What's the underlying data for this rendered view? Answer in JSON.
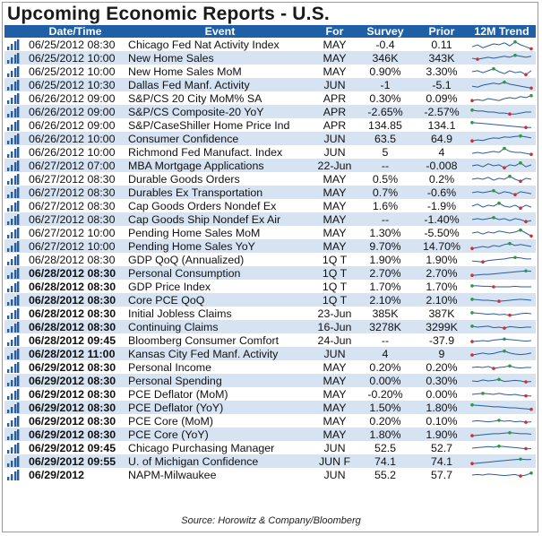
{
  "title": "Upcoming Economic Reports - U.S.",
  "columns": {
    "datetime": "Date/Time",
    "event": "Event",
    "for": "For",
    "survey": "Survey",
    "prior": "Prior",
    "trend": "12M Trend"
  },
  "source": "Source: Horowitz & Company/Bloomberg",
  "colors": {
    "header": "#1f5fa6",
    "alt_row": "#d6e3f3",
    "spark_line": "#2a5d9a",
    "spark_high": "#2e9a3a",
    "spark_low": "#d23030"
  },
  "chart_data": {
    "type": "table",
    "rows": [
      {
        "datetime": "06/25/2012 08:30",
        "bold": false,
        "event": "Chicago Fed Nat Activity Index",
        "for": "MAY",
        "survey": "-0.4",
        "prior": "0.11",
        "trend": [
          0.3,
          0.5,
          0.2,
          0.4,
          0.6,
          0.5,
          0.7,
          0.4,
          0.8,
          0.5,
          0.3,
          0.1
        ]
      },
      {
        "datetime": "06/25/2012 10:00",
        "bold": false,
        "event": "New Home Sales",
        "for": "MAY",
        "survey": "346K",
        "prior": "343K",
        "trend": [
          0.5,
          0.4,
          0.5,
          0.6,
          0.5,
          0.6,
          0.7,
          0.6,
          0.8,
          0.7,
          0.6,
          0.7
        ]
      },
      {
        "datetime": "06/25/2012 10:00",
        "bold": false,
        "event": "New Home Sales MoM",
        "for": "MAY",
        "survey": "0.90%",
        "prior": "3.30%",
        "trend": [
          0.5,
          0.6,
          0.4,
          0.6,
          0.8,
          0.5,
          0.3,
          0.6,
          0.4,
          0.5,
          0.2,
          0.6
        ]
      },
      {
        "datetime": "06/25/2012 10:30",
        "bold": false,
        "event": "Dallas Fed Manf. Activity",
        "for": "JUN",
        "survey": "-1",
        "prior": "-5.1",
        "trend": [
          0.4,
          0.3,
          0.5,
          0.6,
          0.7,
          0.6,
          0.8,
          0.6,
          0.5,
          0.4,
          0.3,
          0.2
        ]
      },
      {
        "datetime": "06/26/2012 09:00",
        "bold": false,
        "event": "S&P/CS 20 City MoM% SA",
        "for": "APR",
        "survey": "0.30%",
        "prior": "0.09%",
        "trend": [
          0.3,
          0.4,
          0.3,
          0.5,
          0.4,
          0.3,
          0.5,
          0.6,
          0.5,
          0.7,
          0.6,
          0.8
        ]
      },
      {
        "datetime": "06/26/2012 09:00",
        "bold": false,
        "event": "S&P/CS Composite-20 YoY",
        "for": "APR",
        "survey": "-2.65%",
        "prior": "-2.57%",
        "trend": [
          0.7,
          0.6,
          0.6,
          0.5,
          0.5,
          0.4,
          0.4,
          0.3,
          0.3,
          0.4,
          0.5,
          0.5
        ]
      },
      {
        "datetime": "06/26/2012 09:00",
        "bold": false,
        "event": "S&P/CaseShiller Home Price Ind",
        "for": "APR",
        "survey": "134.85",
        "prior": "134.1",
        "trend": [
          0.8,
          0.75,
          0.7,
          0.65,
          0.6,
          0.55,
          0.5,
          0.45,
          0.4,
          0.35,
          0.3,
          0.3
        ]
      },
      {
        "datetime": "06/26/2012 10:00",
        "bold": false,
        "event": "Consumer Confidence",
        "for": "JUN",
        "survey": "63.5",
        "prior": "64.9",
        "trend": [
          0.3,
          0.4,
          0.35,
          0.5,
          0.6,
          0.55,
          0.7,
          0.65,
          0.75,
          0.8,
          0.7,
          0.6
        ]
      },
      {
        "datetime": "06/26/2012 10:00",
        "bold": false,
        "event": "Richmond Fed Manufact. Index",
        "for": "JUN",
        "survey": "5",
        "prior": "4",
        "trend": [
          0.4,
          0.5,
          0.4,
          0.5,
          0.6,
          0.5,
          0.9,
          0.6,
          0.5,
          0.5,
          0.4,
          0.3
        ]
      },
      {
        "datetime": "06/27/2012 07:00",
        "bold": false,
        "event": "MBA Mortgage Applications",
        "for": "22-Jun",
        "survey": "--",
        "prior": "-0.008",
        "trend": [
          0.5,
          0.6,
          0.4,
          0.7,
          0.5,
          0.6,
          0.3,
          0.6,
          0.5,
          0.8,
          0.4,
          0.6
        ]
      },
      {
        "datetime": "06/27/2012 08:30",
        "bold": false,
        "event": "Durable Goods Orders",
        "for": "MAY",
        "survey": "0.5%",
        "prior": "0.2%",
        "trend": [
          0.5,
          0.6,
          0.5,
          0.7,
          0.4,
          0.6,
          0.5,
          0.8,
          0.5,
          0.3,
          0.6,
          0.5
        ]
      },
      {
        "datetime": "06/27/2012 08:30",
        "bold": false,
        "event": "Durables Ex Transportation",
        "for": "MAY",
        "survey": "0.7%",
        "prior": "-0.6%",
        "trend": [
          0.5,
          0.6,
          0.5,
          0.6,
          0.7,
          0.4,
          0.6,
          0.5,
          0.3,
          0.6,
          0.5,
          0.4
        ]
      },
      {
        "datetime": "06/27/2012 08:30",
        "bold": false,
        "event": "Cap Goods Orders Nondef Ex",
        "for": "MAY",
        "survey": "1.6%",
        "prior": "-1.9%",
        "trend": [
          0.5,
          0.7,
          0.4,
          0.6,
          0.5,
          0.8,
          0.5,
          0.4,
          0.6,
          0.3,
          0.6,
          0.4
        ]
      },
      {
        "datetime": "06/27/2012 08:30",
        "bold": false,
        "event": "Cap Goods Ship Nondef Ex Air",
        "for": "MAY",
        "survey": "--",
        "prior": "-1.40%",
        "trend": [
          0.5,
          0.6,
          0.5,
          0.6,
          0.7,
          0.5,
          0.6,
          0.4,
          0.6,
          0.5,
          0.3,
          0.4
        ]
      },
      {
        "datetime": "06/27/2012 10:00",
        "bold": false,
        "event": "Pending Home Sales MoM",
        "for": "MAY",
        "survey": "1.30%",
        "prior": "-5.50%",
        "trend": [
          0.5,
          0.6,
          0.4,
          0.6,
          0.5,
          0.7,
          0.6,
          0.5,
          0.6,
          0.8,
          0.5,
          0.2
        ]
      },
      {
        "datetime": "06/27/2012 10:00",
        "bold": false,
        "event": "Pending Home Sales YoY",
        "for": "MAY",
        "survey": "9.70%",
        "prior": "14.70%",
        "trend": [
          0.3,
          0.4,
          0.5,
          0.4,
          0.6,
          0.5,
          0.7,
          0.8,
          0.6,
          0.7,
          0.6,
          0.5
        ]
      },
      {
        "datetime": "06/28/2012 08:30",
        "bold": false,
        "event": "GDP QoQ (Annualized)",
        "for": "1Q T",
        "survey": "1.90%",
        "prior": "1.90%",
        "trend": [
          0.4,
          0.35,
          0.3,
          0.45,
          0.5,
          0.55,
          0.6,
          0.7,
          0.75,
          0.7,
          0.6,
          0.6
        ]
      },
      {
        "datetime": "06/28/2012 08:30",
        "bold": true,
        "event": "Personal Consumption",
        "for": "1Q T",
        "survey": "2.70%",
        "prior": "2.70%",
        "trend": [
          0.3,
          0.35,
          0.4,
          0.4,
          0.45,
          0.5,
          0.55,
          0.6,
          0.65,
          0.7,
          0.75,
          0.7
        ]
      },
      {
        "datetime": "06/28/2012 08:30",
        "bold": true,
        "event": "GDP Price Index",
        "for": "1Q T",
        "survey": "1.70%",
        "prior": "1.70%",
        "trend": [
          0.6,
          0.6,
          0.55,
          0.55,
          0.5,
          0.5,
          0.5,
          0.5,
          0.55,
          0.5,
          0.5,
          0.5
        ]
      },
      {
        "datetime": "06/28/2012 08:30",
        "bold": true,
        "event": "Core PCE QoQ",
        "for": "1Q T",
        "survey": "2.10%",
        "prior": "2.10%",
        "trend": [
          0.6,
          0.55,
          0.5,
          0.5,
          0.45,
          0.4,
          0.45,
          0.5,
          0.55,
          0.6,
          0.55,
          0.5
        ]
      },
      {
        "datetime": "06/28/2012 08:30",
        "bold": true,
        "event": "Initial Jobless Claims",
        "for": "23-Jun",
        "survey": "385K",
        "prior": "387K",
        "trend": [
          0.6,
          0.55,
          0.5,
          0.45,
          0.5,
          0.4,
          0.45,
          0.35,
          0.4,
          0.5,
          0.55,
          0.5
        ]
      },
      {
        "datetime": "06/28/2012 08:30",
        "bold": true,
        "event": "Continuing Claims",
        "for": "16-Jun",
        "survey": "3278K",
        "prior": "3299K",
        "trend": [
          0.6,
          0.5,
          0.55,
          0.6,
          0.45,
          0.5,
          0.4,
          0.55,
          0.5,
          0.45,
          0.5,
          0.5
        ]
      },
      {
        "datetime": "06/28/2012 09:45",
        "bold": true,
        "event": "Bloomberg Consumer Comfort",
        "for": "24-Jun",
        "survey": "--",
        "prior": "-37.9",
        "trend": [
          0.4,
          0.45,
          0.5,
          0.45,
          0.55,
          0.6,
          0.65,
          0.6,
          0.55,
          0.5,
          0.45,
          0.5
        ]
      },
      {
        "datetime": "06/28/2012 11:00",
        "bold": true,
        "event": "Kansas City Fed Manf. Activity",
        "for": "JUN",
        "survey": "4",
        "prior": "9",
        "trend": [
          0.4,
          0.5,
          0.6,
          0.5,
          0.55,
          0.7,
          0.8,
          0.6,
          0.5,
          0.45,
          0.5,
          0.6
        ]
      },
      {
        "datetime": "06/29/2012 08:30",
        "bold": true,
        "event": "Personal Income",
        "for": "MAY",
        "survey": "0.20%",
        "prior": "0.20%",
        "trend": [
          0.5,
          0.55,
          0.5,
          0.6,
          0.4,
          0.5,
          0.55,
          0.65,
          0.5,
          0.45,
          0.5,
          0.5
        ]
      },
      {
        "datetime": "06/29/2012 08:30",
        "bold": true,
        "event": "Personal Spending",
        "for": "MAY",
        "survey": "0.00%",
        "prior": "0.30%",
        "trend": [
          0.5,
          0.45,
          0.6,
          0.5,
          0.55,
          0.65,
          0.45,
          0.5,
          0.55,
          0.5,
          0.4,
          0.45
        ]
      },
      {
        "datetime": "06/29/2012 08:30",
        "bold": true,
        "event": "PCE Deflator (MoM)",
        "for": "MAY",
        "survey": "-0.20%",
        "prior": "0.00%",
        "trend": [
          0.5,
          0.55,
          0.6,
          0.55,
          0.5,
          0.6,
          0.5,
          0.45,
          0.5,
          0.4,
          0.35,
          0.35
        ]
      },
      {
        "datetime": "06/29/2012 08:30",
        "bold": true,
        "event": "PCE Deflator (YoY)",
        "for": "MAY",
        "survey": "1.50%",
        "prior": "1.80%",
        "trend": [
          0.8,
          0.75,
          0.7,
          0.65,
          0.6,
          0.6,
          0.55,
          0.5,
          0.5,
          0.45,
          0.4,
          0.35
        ]
      },
      {
        "datetime": "06/29/2012 08:30",
        "bold": true,
        "event": "PCE Core (MoM)",
        "for": "MAY",
        "survey": "0.20%",
        "prior": "0.10%",
        "trend": [
          0.5,
          0.55,
          0.5,
          0.45,
          0.5,
          0.6,
          0.5,
          0.55,
          0.45,
          0.5,
          0.4,
          0.45
        ]
      },
      {
        "datetime": "06/29/2012 08:30",
        "bold": true,
        "event": "PCE Core (YoY)",
        "for": "MAY",
        "survey": "1.80%",
        "prior": "1.90%",
        "trend": [
          0.4,
          0.45,
          0.5,
          0.55,
          0.6,
          0.6,
          0.65,
          0.7,
          0.65,
          0.6,
          0.6,
          0.55
        ]
      },
      {
        "datetime": "06/29/2012 09:45",
        "bold": true,
        "event": "Chicago Purchasing Manager",
        "for": "JUN",
        "survey": "52.5",
        "prior": "52.7",
        "trend": [
          0.5,
          0.55,
          0.6,
          0.65,
          0.6,
          0.7,
          0.65,
          0.6,
          0.55,
          0.5,
          0.45,
          0.45
        ]
      },
      {
        "datetime": "06/29/2012 09:55",
        "bold": true,
        "event": "U. of Michigan Confidence",
        "for": "JUN F",
        "survey": "74.1",
        "prior": "74.1",
        "trend": [
          0.3,
          0.35,
          0.4,
          0.45,
          0.5,
          0.55,
          0.6,
          0.65,
          0.7,
          0.75,
          0.7,
          0.72
        ]
      },
      {
        "datetime": "06/29/2012",
        "bold": true,
        "event": "NAPM-Milwaukee",
        "for": "JUN",
        "survey": "55.2",
        "prior": "57.7",
        "trend": [
          0.5,
          0.55,
          0.5,
          0.6,
          0.55,
          0.5,
          0.45,
          0.5,
          0.55,
          0.4,
          0.5,
          0.7
        ]
      }
    ]
  }
}
